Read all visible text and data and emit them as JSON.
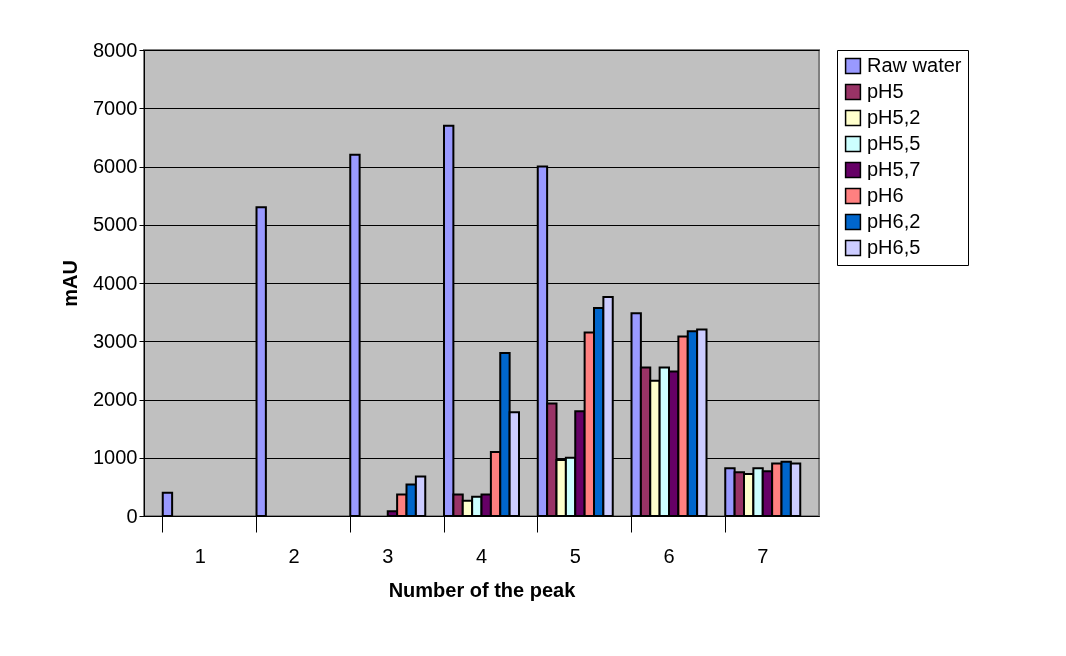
{
  "chart_data": {
    "type": "bar",
    "xlabel": "Number of the peak",
    "ylabel": "mAU",
    "categories": [
      "1",
      "2",
      "3",
      "4",
      "5",
      "6",
      "7"
    ],
    "series": [
      {
        "name": "Raw water",
        "color": "#9999ff",
        "values": [
          400,
          5300,
          6200,
          6700,
          6000,
          3480,
          820
        ]
      },
      {
        "name": "pH5",
        "color": "#993366",
        "values": [
          null,
          null,
          null,
          370,
          1930,
          2550,
          750
        ]
      },
      {
        "name": "pH5,2",
        "color": "#ffffcc",
        "values": [
          null,
          null,
          null,
          260,
          960,
          2320,
          720
        ]
      },
      {
        "name": "pH5,5",
        "color": "#ccffff",
        "values": [
          null,
          null,
          null,
          330,
          1000,
          2550,
          820
        ]
      },
      {
        "name": "pH5,7",
        "color": "#660066",
        "values": [
          null,
          null,
          80,
          370,
          1800,
          2480,
          770
        ]
      },
      {
        "name": "pH6",
        "color": "#ff8080",
        "values": [
          null,
          null,
          370,
          1100,
          3150,
          3080,
          900
        ]
      },
      {
        "name": "pH6,2",
        "color": "#0066cc",
        "values": [
          null,
          null,
          540,
          2800,
          3570,
          3170,
          930
        ]
      },
      {
        "name": "pH6,5",
        "color": "#ccccff",
        "values": [
          null,
          null,
          680,
          1780,
          3760,
          3200,
          900
        ]
      }
    ],
    "ylim": [
      0,
      8000
    ],
    "yticks": [
      0,
      1000,
      2000,
      3000,
      4000,
      5000,
      6000,
      7000,
      8000
    ],
    "grid": "y",
    "legend": "right"
  }
}
